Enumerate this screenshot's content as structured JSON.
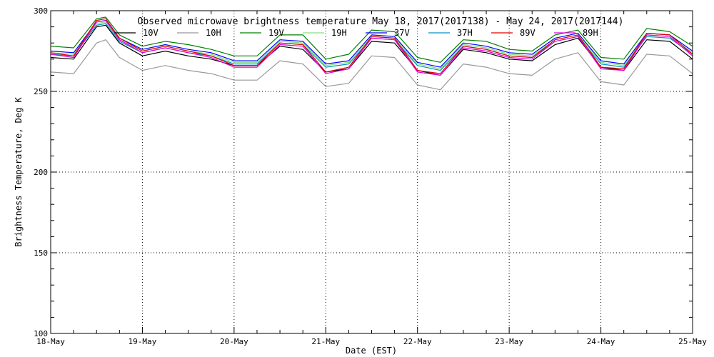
{
  "chart_data": {
    "type": "line",
    "title": "Observed microwave brightness temperature May 18, 2017(2017138) - May 24, 2017(2017144)",
    "xlabel": "Date (EST)",
    "ylabel": "Brightness Temperature, Deg K",
    "ylim": [
      100,
      300
    ],
    "yticks": [
      100,
      150,
      200,
      250,
      300
    ],
    "xlim": [
      0,
      7
    ],
    "xtick_labels": [
      "18-May",
      "19-May",
      "20-May",
      "21-May",
      "22-May",
      "23-May",
      "24-May",
      "25-May"
    ],
    "grid": true,
    "legend_position": "top",
    "x": [
      0.0,
      0.25,
      0.5,
      0.6,
      0.75,
      1.0,
      1.25,
      1.5,
      1.75,
      2.0,
      2.25,
      2.5,
      2.75,
      3.0,
      3.25,
      3.5,
      3.75,
      4.0,
      4.25,
      4.5,
      4.75,
      5.0,
      5.25,
      5.5,
      5.75,
      6.0,
      6.25,
      6.5,
      6.75,
      7.0
    ],
    "series": [
      {
        "name": "10V",
        "color": "#000000",
        "values": [
          271,
          270,
          290,
          291,
          280,
          272,
          275,
          272,
          270,
          266,
          266,
          278,
          276,
          262,
          264,
          281,
          280,
          263,
          260,
          276,
          274,
          270,
          269,
          279,
          283,
          265,
          263,
          282,
          281,
          270
        ]
      },
      {
        "name": "10H",
        "color": "#999999",
        "values": [
          262,
          261,
          280,
          282,
          271,
          263,
          266,
          263,
          261,
          257,
          257,
          269,
          267,
          253,
          255,
          272,
          271,
          254,
          251,
          267,
          265,
          261,
          260,
          270,
          274,
          256,
          254,
          273,
          272,
          261
        ]
      },
      {
        "name": "19V",
        "color": "#008000",
        "values": [
          278,
          277,
          295,
          296,
          285,
          278,
          281,
          279,
          276,
          272,
          272,
          285,
          285,
          270,
          273,
          288,
          287,
          271,
          268,
          282,
          281,
          276,
          275,
          285,
          288,
          271,
          270,
          289,
          287,
          278
        ]
      },
      {
        "name": "19H",
        "color": "#80e080",
        "values": [
          274,
          273,
          292,
          293,
          282,
          275,
          278,
          275,
          273,
          268,
          268,
          281,
          280,
          266,
          268,
          284,
          283,
          267,
          264,
          279,
          277,
          273,
          272,
          282,
          285,
          268,
          266,
          285,
          284,
          274
        ]
      },
      {
        "name": "37V",
        "color": "#0000ff",
        "values": [
          275,
          274,
          293,
          294,
          283,
          276,
          279,
          276,
          274,
          269,
          269,
          282,
          281,
          267,
          269,
          285,
          284,
          268,
          265,
          280,
          278,
          274,
          273,
          283,
          286,
          269,
          267,
          286,
          285,
          275
        ]
      },
      {
        "name": "37H",
        "color": "#0090c0",
        "values": [
          273,
          272,
          291,
          292,
          281,
          274,
          277,
          274,
          272,
          267,
          267,
          280,
          279,
          265,
          267,
          283,
          282,
          266,
          263,
          278,
          276,
          272,
          271,
          281,
          284,
          267,
          265,
          284,
          283,
          273
        ]
      },
      {
        "name": "89V",
        "color": "#e00000",
        "values": [
          274,
          272,
          294,
          295,
          283,
          275,
          278,
          275,
          272,
          266,
          266,
          280,
          279,
          262,
          265,
          284,
          283,
          263,
          261,
          278,
          276,
          272,
          271,
          282,
          285,
          265,
          264,
          286,
          285,
          273
        ]
      },
      {
        "name": "89H",
        "color": "#e000e0",
        "values": [
          273,
          271,
          293,
          294,
          282,
          274,
          277,
          274,
          271,
          265,
          265,
          279,
          278,
          261,
          264,
          283,
          282,
          262,
          260,
          277,
          275,
          271,
          270,
          281,
          284,
          264,
          263,
          285,
          284,
          272
        ]
      }
    ]
  }
}
